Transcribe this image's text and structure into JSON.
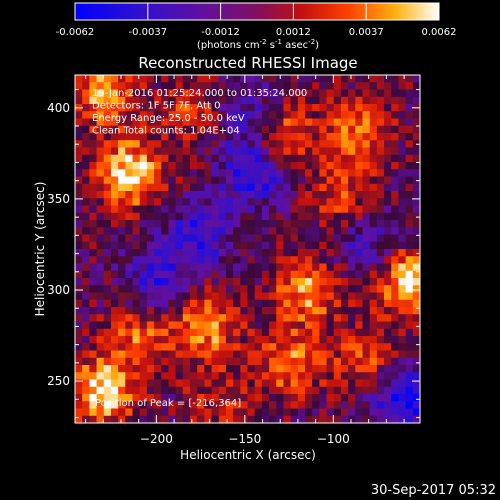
{
  "colorbar": {
    "ticks": [
      "-0.0062",
      "-0.0037",
      "-0.0012",
      "0.0012",
      "0.0037",
      "0.0062"
    ],
    "unit_label": "(photons cm",
    "unit_exp1": "-2",
    "unit_mid": " s",
    "unit_exp2": "-1",
    "unit_mid2": " asec",
    "unit_exp3": "-2",
    "unit_end": ")",
    "range": [
      -0.0062,
      0.0062
    ]
  },
  "colors": {
    "background": "#000000",
    "frame": "#ffffff",
    "colormap": [
      "#0000ff",
      "#5010c0",
      "#801080",
      "#c01010",
      "#ff5000",
      "#ffb010",
      "#ffff80",
      "#ffffff"
    ]
  },
  "chart_data": {
    "type": "heatmap",
    "title": "Reconstructed RHESSI Image",
    "xlabel": "Heliocentric X (arcsec)",
    "ylabel": "Heliocentric Y (arcsec)",
    "xlim": [
      -246,
      -51
    ],
    "ylim": [
      227,
      418
    ],
    "xticks": [
      -200,
      -150,
      -100
    ],
    "yticks": [
      250,
      300,
      350,
      400
    ],
    "annotations": [
      "19-Jan-2016 01:25:24.000 to 01:35:24.000",
      "Detectors: 1F 5F 7F, Att 0",
      "Energy Range: 25.0 - 50.0 keV",
      "Clean    Total counts: 1.04E+04"
    ],
    "peak_label": "Position of Peak = [-216,364]",
    "sources": [
      {
        "x": -215,
        "y": 364,
        "value": 0.0062
      },
      {
        "x": -230,
        "y": 408,
        "value": 0.0045
      },
      {
        "x": -178,
        "y": 400,
        "value": 0.003
      },
      {
        "x": -128,
        "y": 384,
        "value": 0.0038
      },
      {
        "x": -85,
        "y": 388,
        "value": 0.004
      },
      {
        "x": -95,
        "y": 352,
        "value": 0.003
      },
      {
        "x": -58,
        "y": 305,
        "value": 0.0058
      },
      {
        "x": -115,
        "y": 300,
        "value": 0.0048
      },
      {
        "x": -172,
        "y": 280,
        "value": 0.0045
      },
      {
        "x": -210,
        "y": 275,
        "value": 0.0035
      },
      {
        "x": -125,
        "y": 260,
        "value": 0.0042
      },
      {
        "x": -82,
        "y": 262,
        "value": 0.0032
      },
      {
        "x": -230,
        "y": 245,
        "value": 0.006
      },
      {
        "x": -165,
        "y": 240,
        "value": 0.002
      },
      {
        "x": -175,
        "y": 330,
        "value": -0.004
      },
      {
        "x": -145,
        "y": 365,
        "value": -0.005
      },
      {
        "x": -200,
        "y": 305,
        "value": -0.0038
      },
      {
        "x": -60,
        "y": 240,
        "value": -0.0055
      },
      {
        "x": -150,
        "y": 400,
        "value": -0.003
      },
      {
        "x": -80,
        "y": 325,
        "value": -0.003
      }
    ]
  },
  "timestamp": "30-Sep-2017 05:32"
}
